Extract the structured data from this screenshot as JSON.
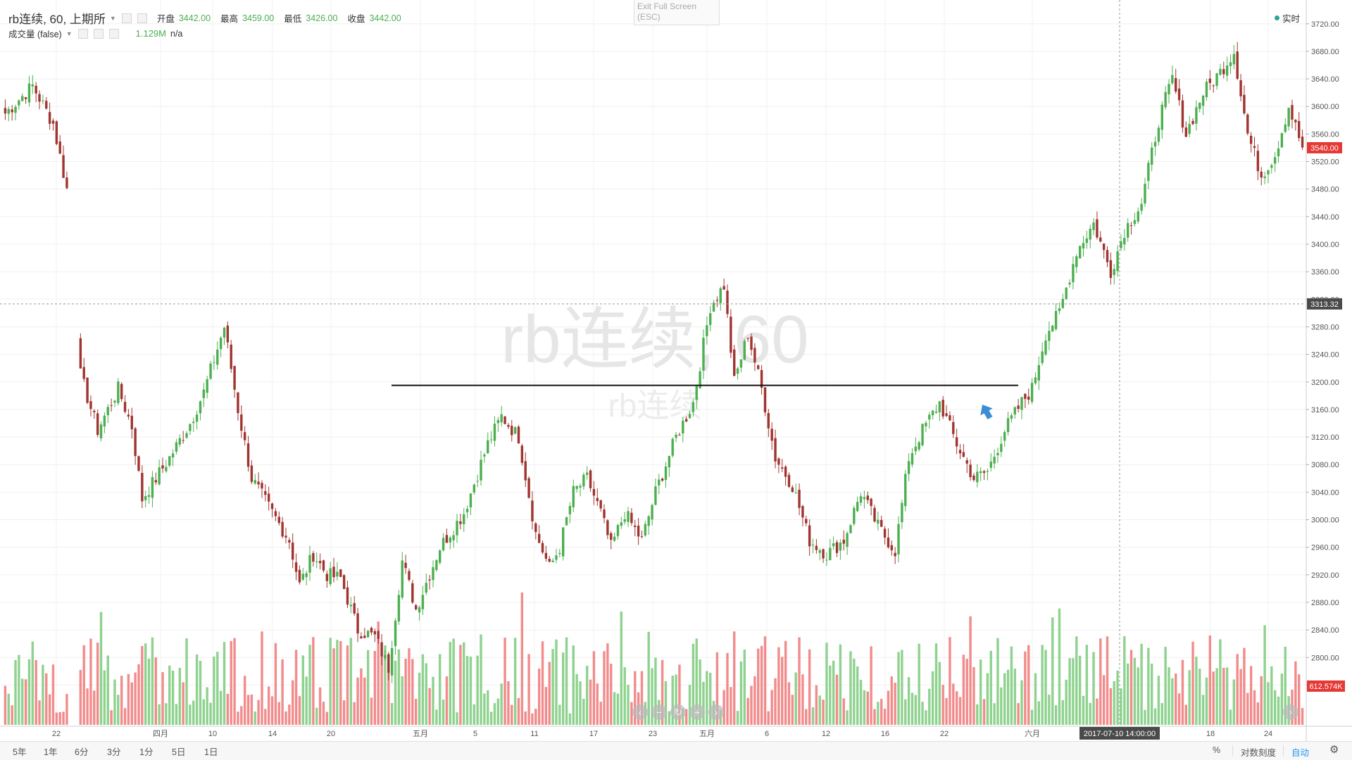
{
  "legend": {
    "symbol": "rb连续, 60, 上期所",
    "open_label": "开盘",
    "open_value": "3442.00",
    "high_label": "最高",
    "high_value": "3459.00",
    "low_label": "最低",
    "low_value": "3426.00",
    "close_label": "收盘",
    "close_value": "3442.00",
    "volume_label": "成交量 (false)",
    "volume_value": "1.129M",
    "volume_extra": "n/a"
  },
  "exit_fullscreen": {
    "line1": "Exit Full Screen",
    "line2": "(ESC)"
  },
  "realtime_label": "实时",
  "watermark": {
    "main": "rb连续, 60",
    "sub": "rb连续"
  },
  "colors": {
    "up": "#4caf50",
    "down": "#a0342f",
    "vol_up": "#8fd28f",
    "vol_down": "#f28b8b",
    "last_price": "#e53935",
    "trendline": "#111111",
    "arrow": "#3a8ed8"
  },
  "price_axis": {
    "ticks": [
      "3720.00",
      "3680.00",
      "3640.00",
      "3600.00",
      "3560.00",
      "3520.00",
      "3480.00",
      "3440.00",
      "3400.00",
      "3360.00",
      "3320.00",
      "3280.00",
      "3240.00",
      "3200.00",
      "3160.00",
      "3120.00",
      "3080.00",
      "3040.00",
      "3000.00",
      "2960.00",
      "2920.00",
      "2880.00",
      "2840.00",
      "2800.00",
      "2760.00"
    ],
    "last_price": "3540.00",
    "crosshair_price": "3313.32",
    "volume_label": "612.574K"
  },
  "time_axis": {
    "labels": [
      "22",
      "四月",
      "10",
      "14",
      "20",
      "五月",
      "5",
      "11",
      "17",
      "23",
      "五月",
      "6",
      "12",
      "16",
      "22",
      "六月",
      "18",
      "24"
    ],
    "crosshair_time": "2017-07-10 14:00:00"
  },
  "bottom_bar": {
    "intervals": [
      "5年",
      "1年",
      "6分",
      "3分",
      "1分",
      "5日",
      "1日"
    ],
    "percent": "%",
    "log": "对数刻度",
    "auto": "自动"
  },
  "chart_data": {
    "type": "candlestick",
    "symbol": "rb连续",
    "interval": "60",
    "ylim": [
      2740,
      3730
    ],
    "trendline_price": 3195,
    "anchors": [
      [
        0,
        3590
      ],
      [
        8,
        3630
      ],
      [
        14,
        3575
      ],
      [
        18,
        3480
      ],
      [
        22,
        3210
      ],
      [
        27,
        3130
      ],
      [
        33,
        3190
      ],
      [
        37,
        3135
      ],
      [
        40,
        3030
      ],
      [
        48,
        3090
      ],
      [
        54,
        3140
      ],
      [
        58,
        3185
      ],
      [
        64,
        3280
      ],
      [
        68,
        3160
      ],
      [
        72,
        3060
      ],
      [
        78,
        3010
      ],
      [
        83,
        2970
      ],
      [
        86,
        2905
      ],
      [
        90,
        2950
      ],
      [
        94,
        2920
      ],
      [
        98,
        2915
      ],
      [
        103,
        2840
      ],
      [
        108,
        2830
      ],
      [
        112,
        2785
      ],
      [
        116,
        2940
      ],
      [
        120,
        2870
      ],
      [
        127,
        2960
      ],
      [
        134,
        3010
      ],
      [
        141,
        3110
      ],
      [
        145,
        3150
      ],
      [
        150,
        3120
      ],
      [
        155,
        2980
      ],
      [
        159,
        2930
      ],
      [
        162,
        2960
      ],
      [
        166,
        3040
      ],
      [
        170,
        3060
      ],
      [
        174,
        3010
      ],
      [
        177,
        2960
      ],
      [
        181,
        3010
      ],
      [
        186,
        2970
      ],
      [
        190,
        3040
      ],
      [
        196,
        3120
      ],
      [
        201,
        3170
      ],
      [
        206,
        3310
      ],
      [
        210,
        3340
      ],
      [
        213,
        3200
      ],
      [
        217,
        3270
      ],
      [
        221,
        3190
      ],
      [
        225,
        3090
      ],
      [
        230,
        3050
      ],
      [
        235,
        2970
      ],
      [
        240,
        2950
      ],
      [
        245,
        2970
      ],
      [
        250,
        3040
      ],
      [
        255,
        2990
      ],
      [
        260,
        2955
      ],
      [
        264,
        3090
      ],
      [
        268,
        3130
      ],
      [
        273,
        3170
      ],
      [
        278,
        3110
      ],
      [
        283,
        3060
      ],
      [
        287,
        3070
      ],
      [
        292,
        3130
      ],
      [
        297,
        3170
      ],
      [
        300,
        3190
      ],
      [
        304,
        3270
      ],
      [
        308,
        3300
      ],
      [
        313,
        3390
      ],
      [
        318,
        3430
      ],
      [
        323,
        3360
      ],
      [
        327,
        3420
      ],
      [
        332,
        3460
      ],
      [
        337,
        3580
      ],
      [
        341,
        3640
      ],
      [
        345,
        3560
      ],
      [
        350,
        3620
      ],
      [
        355,
        3650
      ],
      [
        359,
        3680
      ],
      [
        363,
        3560
      ],
      [
        367,
        3500
      ],
      [
        371,
        3530
      ],
      [
        375,
        3600
      ],
      [
        379,
        3540
      ]
    ],
    "volume_ylim": [
      0,
      1000000
    ]
  }
}
